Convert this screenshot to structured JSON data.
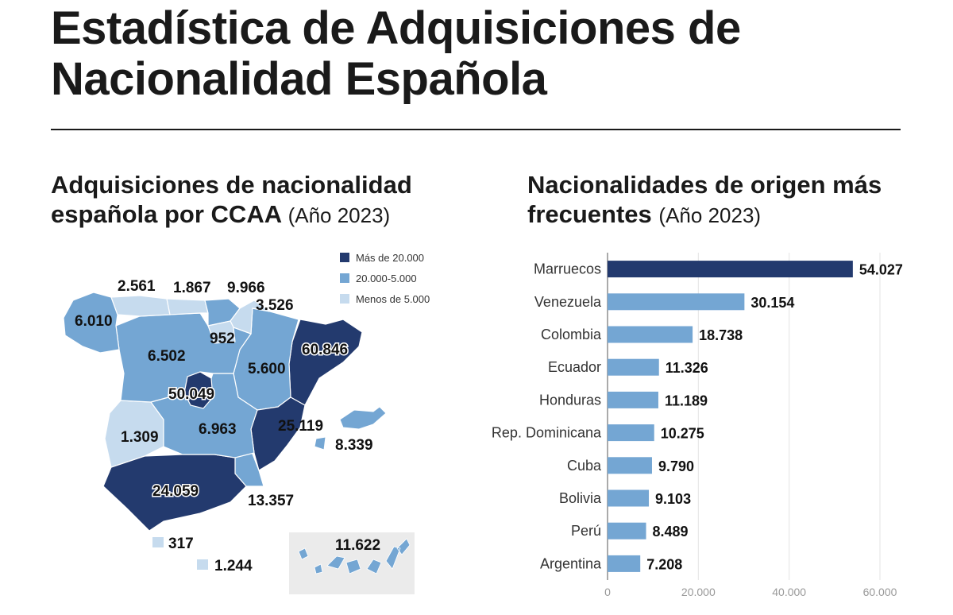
{
  "title_line1": "Estadística de Adquisiciones de",
  "title_line2": "Nacionalidad Española",
  "colors": {
    "dark": "#233a6e",
    "mid": "#74a6d3",
    "light": "#c6dbee",
    "canary_box": "#ebebeb",
    "grid": "#e3e3e3"
  },
  "map": {
    "title_line1": "Adquisiciones de nacionalidad",
    "title_line2": "española por CCAA",
    "title_year": "(Año 2023)",
    "legend": [
      {
        "label": "Más de 20.000",
        "color": "#233a6e"
      },
      {
        "label": "20.000-5.000",
        "color": "#74a6d3"
      },
      {
        "label": "Menos de 5.000",
        "color": "#c6dbee"
      }
    ],
    "regions": {
      "galicia": {
        "value": "6.010",
        "tier": "mid"
      },
      "asturias": {
        "value": "2.561",
        "tier": "light"
      },
      "cantabria": {
        "value": "1.867",
        "tier": "light"
      },
      "pais_vasco": {
        "value": "9.966",
        "tier": "mid"
      },
      "navarra": {
        "value": "3.526",
        "tier": "light"
      },
      "la_rioja": {
        "value": "952",
        "tier": "light"
      },
      "castilla_leon": {
        "value": "6.502",
        "tier": "mid"
      },
      "aragon": {
        "value": "5.600",
        "tier": "mid"
      },
      "cataluna": {
        "value": "60.846",
        "tier": "dark"
      },
      "madrid": {
        "value": "50.049",
        "tier": "dark"
      },
      "castilla_la_mancha": {
        "value": "6.963",
        "tier": "mid"
      },
      "valencia": {
        "value": "25.119",
        "tier": "dark"
      },
      "baleares": {
        "value": "8.339",
        "tier": "mid"
      },
      "extremadura": {
        "value": "1.309",
        "tier": "light"
      },
      "andalucia": {
        "value": "24.059",
        "tier": "dark"
      },
      "murcia": {
        "value": "13.357",
        "tier": "mid"
      },
      "ceuta": {
        "value": "317",
        "tier": "light"
      },
      "melilla": {
        "value": "1.244",
        "tier": "light"
      },
      "canarias": {
        "value": "11.622",
        "tier": "mid"
      }
    }
  },
  "bars": {
    "title_line1": "Nacionalidades de origen más",
    "title_line2": "frecuentes",
    "title_year": "(Año 2023)"
  },
  "chart_data": {
    "type": "bar",
    "orientation": "horizontal",
    "title": "Nacionalidades de origen más frecuentes (Año 2023)",
    "categories": [
      "Marruecos",
      "Venezuela",
      "Colombia",
      "Ecuador",
      "Honduras",
      "Rep. Dominicana",
      "Cuba",
      "Bolivia",
      "Perú",
      "Argentina"
    ],
    "values": [
      54027,
      30154,
      18738,
      11326,
      11189,
      10275,
      9790,
      9103,
      8489,
      7208
    ],
    "value_labels": [
      "54.027",
      "30.154",
      "18.738",
      "11.326",
      "11.189",
      "10.275",
      "9.790",
      "9.103",
      "8.489",
      "7.208"
    ],
    "highlight_index": 0,
    "xlim": [
      0,
      60000
    ],
    "xticks": [
      0,
      20000,
      40000,
      60000
    ],
    "xtick_labels": [
      "0",
      "20.000",
      "40.000",
      "60.000"
    ],
    "grid": true
  }
}
